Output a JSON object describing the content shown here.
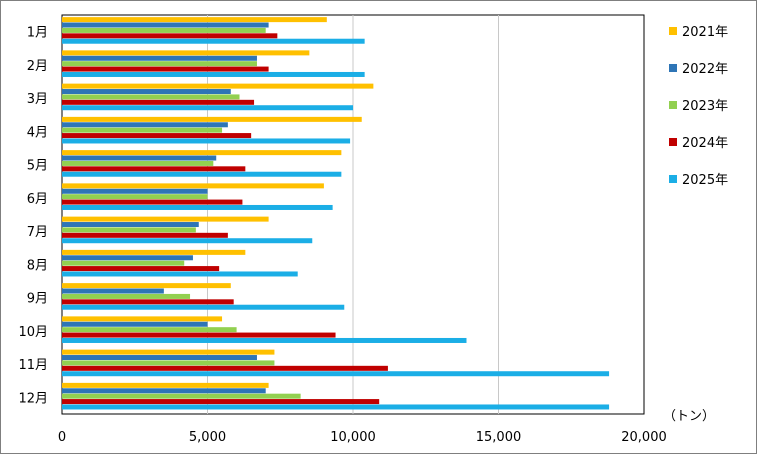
{
  "chart_data": {
    "type": "bar",
    "orientation": "horizontal",
    "categories": [
      "1月",
      "2月",
      "3月",
      "4月",
      "5月",
      "6月",
      "7月",
      "8月",
      "9月",
      "10月",
      "11月",
      "12月"
    ],
    "series": [
      {
        "name": "2021年",
        "color": "#FFC000",
        "values": [
          9100,
          8500,
          10700,
          10300,
          9600,
          9000,
          7100,
          6300,
          5800,
          5500,
          7300,
          7100
        ]
      },
      {
        "name": "2022年",
        "color": "#2E75B6",
        "values": [
          7100,
          6700,
          5800,
          5700,
          5300,
          5000,
          4700,
          4500,
          3500,
          5000,
          6700,
          7000
        ]
      },
      {
        "name": "2023年",
        "color": "#92D050",
        "values": [
          7000,
          6700,
          6100,
          5500,
          5200,
          5000,
          4600,
          4200,
          4400,
          6000,
          7300,
          8200
        ]
      },
      {
        "name": "2024年",
        "color": "#C00000",
        "values": [
          7400,
          7100,
          6600,
          6500,
          6300,
          6200,
          5700,
          5400,
          5900,
          9400,
          11200,
          10900
        ]
      },
      {
        "name": "2025年",
        "color": "#1BAEE6",
        "values": [
          10400,
          10400,
          10000,
          9900,
          9600,
          9300,
          8600,
          8100,
          9700,
          13900,
          18800,
          18800
        ]
      }
    ],
    "xlim": [
      0,
      20000
    ],
    "xticks": [
      0,
      5000,
      10000,
      15000,
      20000
    ],
    "xtick_labels": [
      "0",
      "5,000",
      "10,000",
      "15,000",
      "20,000"
    ],
    "unit_label": "（トン）",
    "grid": "vertical",
    "legend_position": "right"
  }
}
